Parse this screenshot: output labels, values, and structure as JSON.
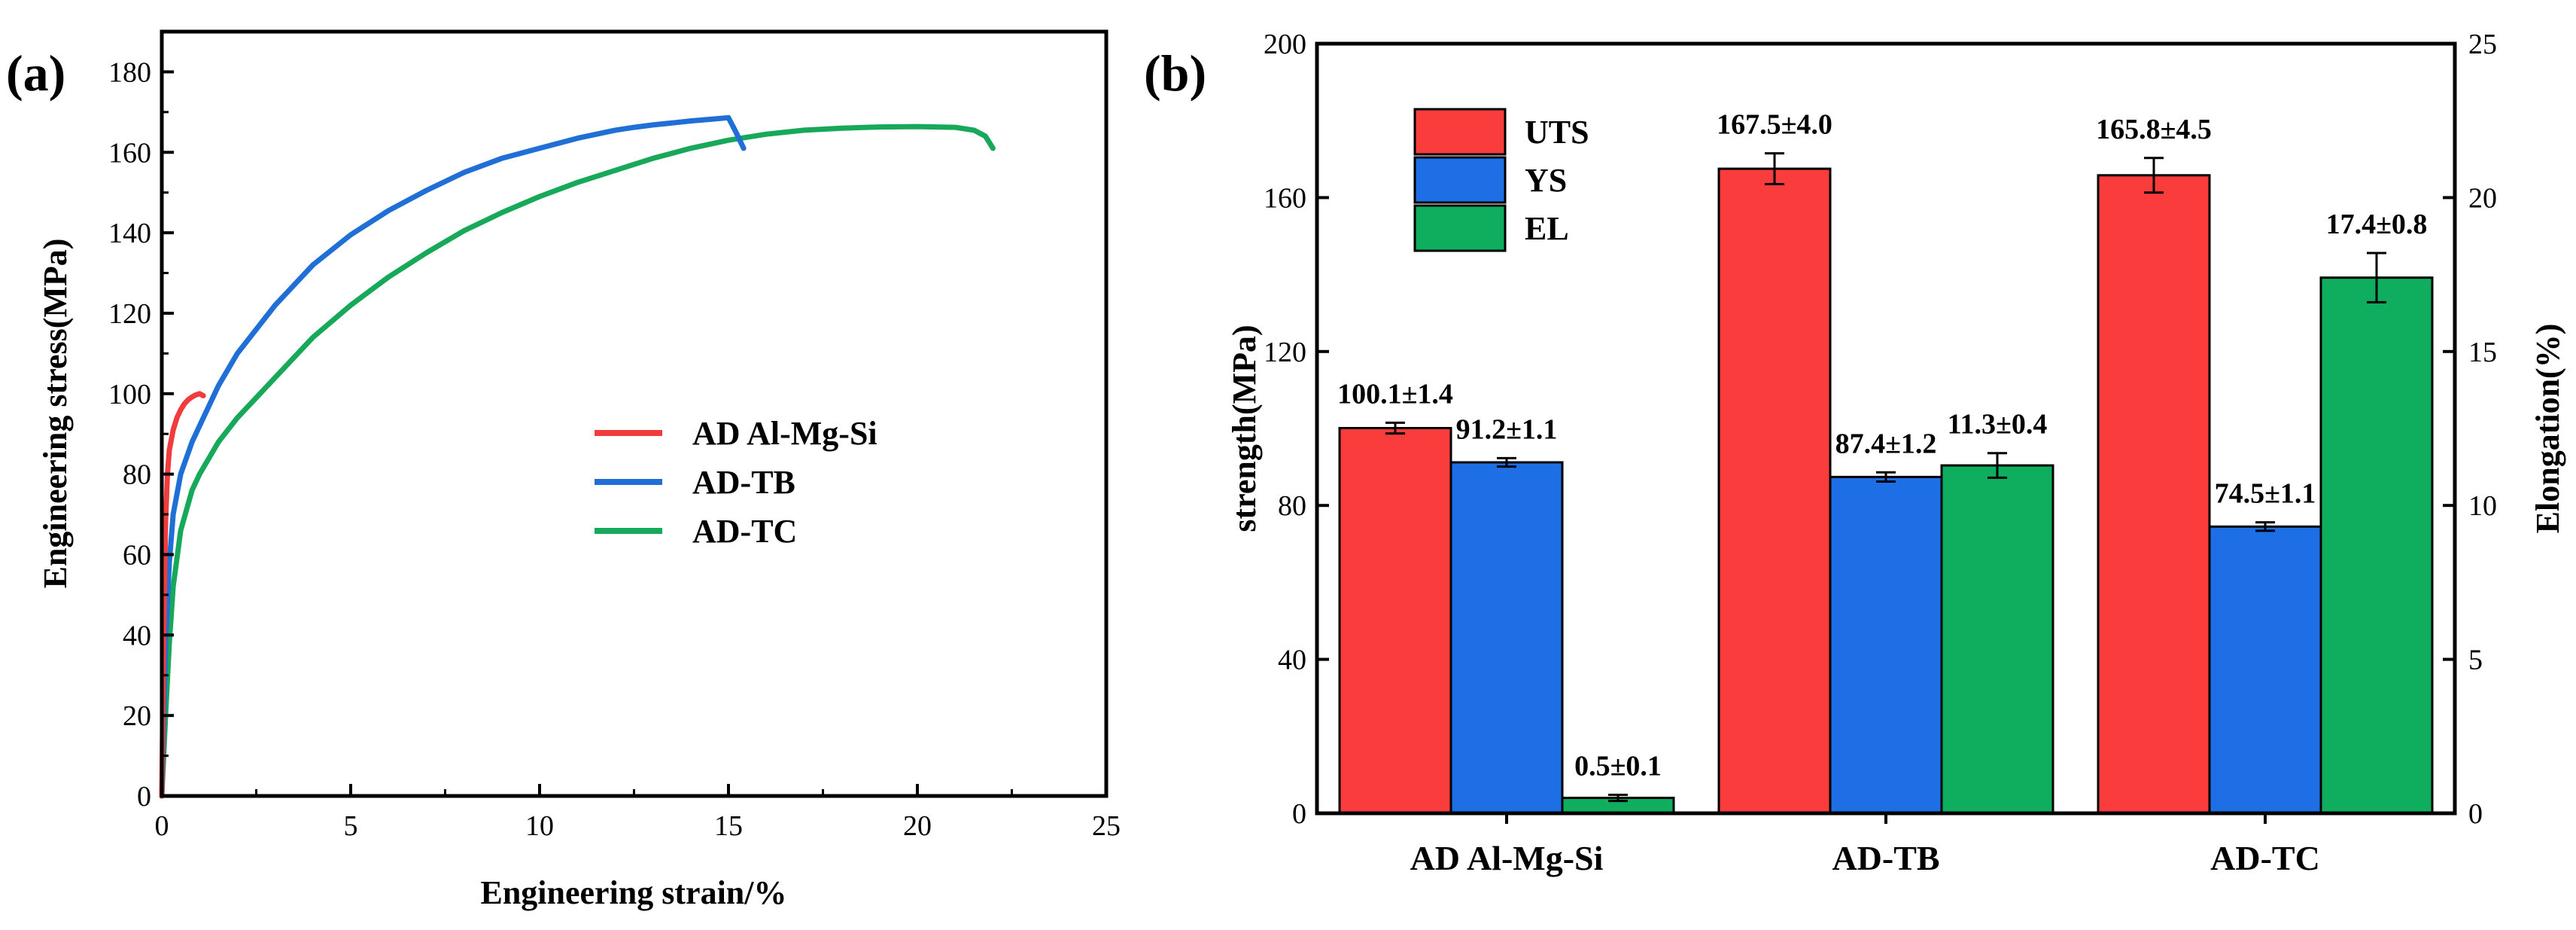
{
  "figure": {
    "panels": [
      {
        "id": "a",
        "label": "(a)"
      },
      {
        "id": "b",
        "label": "(b)"
      }
    ]
  },
  "chart_data": [
    {
      "panel": "a",
      "type": "line",
      "title": "",
      "xlabel": "Engineering strain/%",
      "ylabel": "Engineering stress(MPa)",
      "xlim": [
        0,
        25
      ],
      "ylim": [
        0,
        190
      ],
      "xticks": [
        0,
        5,
        10,
        15,
        20,
        25
      ],
      "yticks": [
        0,
        20,
        40,
        60,
        80,
        100,
        120,
        140,
        160,
        180
      ],
      "grid": false,
      "legend_position": "center-right",
      "series": [
        {
          "name": "AD Al-Mg-Si",
          "color": "#f03c3c",
          "x": [
            0,
            0.05,
            0.1,
            0.15,
            0.2,
            0.3,
            0.4,
            0.5,
            0.6,
            0.7,
            0.8,
            0.9,
            1.0,
            1.1
          ],
          "y": [
            0,
            40,
            68,
            80,
            86,
            91,
            94,
            96,
            97.5,
            98.5,
            99.2,
            99.7,
            100,
            99.5
          ]
        },
        {
          "name": "AD-TB",
          "color": "#1f6fd6",
          "x": [
            0,
            0.1,
            0.2,
            0.3,
            0.5,
            0.8,
            1,
            1.5,
            2,
            3,
            4,
            5,
            6,
            7,
            8,
            9,
            10,
            11,
            12,
            12.5,
            13,
            13.5,
            14,
            14.5,
            15,
            15.2,
            15.4
          ],
          "y": [
            0,
            38,
            58,
            70,
            80,
            88,
            92,
            102,
            110,
            122,
            132,
            139.5,
            145.5,
            150.5,
            155,
            158.5,
            161,
            163.5,
            165.5,
            166.2,
            166.8,
            167.3,
            167.8,
            168.2,
            168.6,
            165,
            161
          ]
        },
        {
          "name": "AD-TC",
          "color": "#18a85a",
          "x": [
            0,
            0.1,
            0.2,
            0.3,
            0.5,
            0.8,
            1,
            1.5,
            2,
            3,
            4,
            5,
            6,
            7,
            8,
            9,
            10,
            11,
            12,
            13,
            14,
            15,
            16,
            17,
            18,
            19,
            20,
            21,
            21.5,
            21.8,
            22.0
          ],
          "y": [
            0,
            20,
            38,
            52,
            66,
            76,
            80,
            88,
            94,
            104,
            114,
            122,
            129,
            135,
            140.5,
            145,
            149,
            152.5,
            155.5,
            158.5,
            161,
            163,
            164.5,
            165.5,
            166,
            166.3,
            166.4,
            166.2,
            165.5,
            164,
            161
          ]
        }
      ]
    },
    {
      "panel": "b",
      "type": "bar",
      "title": "",
      "xlabel": "",
      "ylabel": "strength(MPa)",
      "y2label": "Elongation(%)",
      "ylim": [
        0,
        200
      ],
      "y2lim": [
        0,
        25
      ],
      "yticks": [
        0,
        40,
        80,
        120,
        160,
        200
      ],
      "y2ticks": [
        0,
        5,
        10,
        15,
        20,
        25
      ],
      "grid": false,
      "legend_position": "top-left",
      "categories": [
        "AD Al-Mg-Si",
        "AD-TB",
        "AD-TC"
      ],
      "series": [
        {
          "name": "UTS",
          "axis": "left",
          "color": "#fa3c3c",
          "values": [
            100.1,
            167.5,
            165.8
          ],
          "errors": [
            1.4,
            4.0,
            4.5
          ],
          "labels": [
            "100.1±1.4",
            "167.5±4.0",
            "165.8±4.5"
          ]
        },
        {
          "name": "YS",
          "axis": "left",
          "color": "#1e6fe6",
          "values": [
            91.2,
            87.4,
            74.5
          ],
          "errors": [
            1.1,
            1.2,
            1.1
          ],
          "labels": [
            "91.2±1.1",
            "87.4±1.2",
            "74.5±1.1"
          ]
        },
        {
          "name": "EL",
          "axis": "right",
          "color": "#0eae5e",
          "values": [
            0.5,
            11.3,
            17.4
          ],
          "errors": [
            0.1,
            0.4,
            0.8
          ],
          "labels": [
            "0.5±0.1",
            "11.3±0.4",
            "17.4±0.8"
          ]
        }
      ]
    }
  ]
}
